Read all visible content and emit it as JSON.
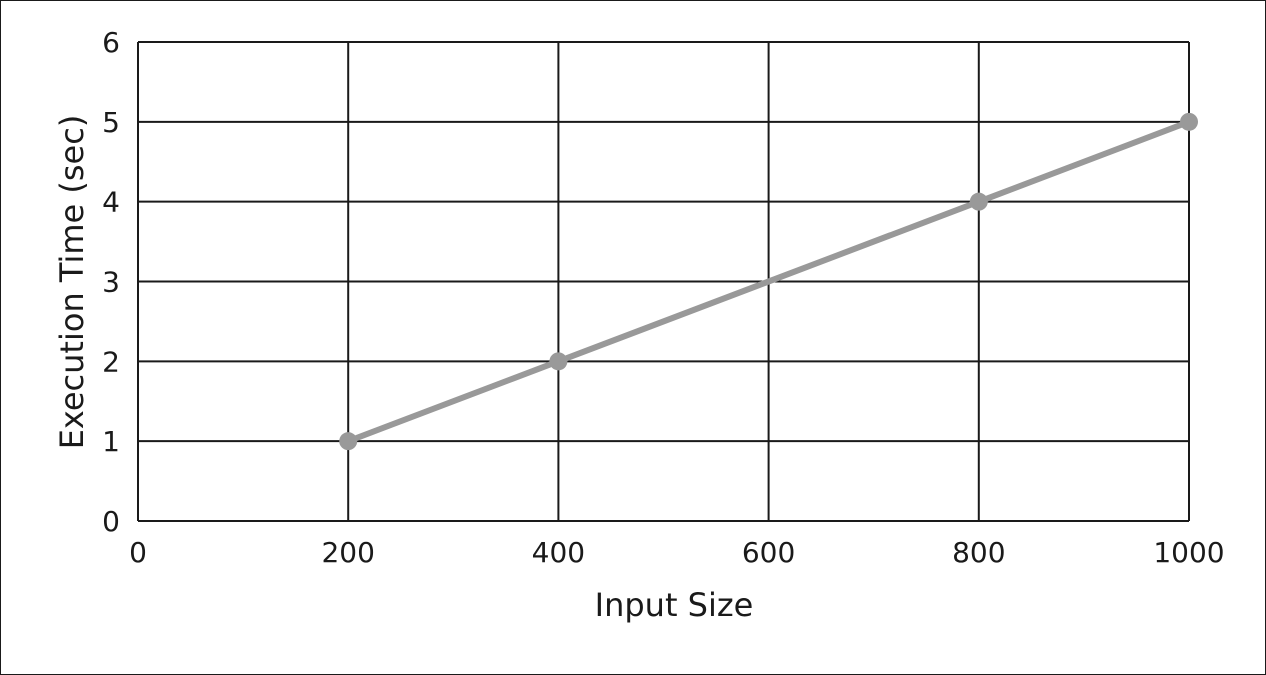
{
  "chart_data": {
    "type": "line",
    "title": "",
    "xlabel": "Input Size",
    "ylabel": "Execution Time (sec)",
    "xlim": [
      0,
      1000
    ],
    "ylim": [
      0,
      6
    ],
    "x_ticks": [
      0,
      200,
      400,
      600,
      800,
      1000
    ],
    "y_ticks": [
      0,
      1,
      2,
      3,
      4,
      5,
      6
    ],
    "grid": true,
    "series": [
      {
        "x": [
          200,
          400,
          800,
          1000
        ],
        "y": [
          1,
          2,
          4,
          5
        ],
        "color": "#999999",
        "markers": true
      }
    ]
  }
}
